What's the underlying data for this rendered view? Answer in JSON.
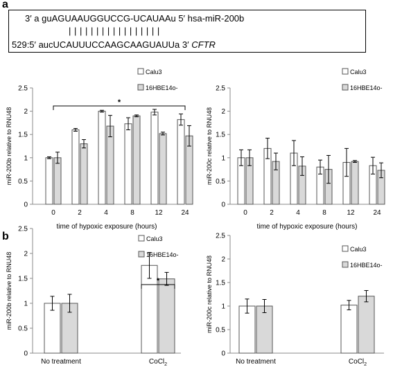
{
  "panel_labels": {
    "a": "a",
    "b": "b"
  },
  "sequence": {
    "mirna": {
      "text": "3′ a guAGUAAUGGUCCG-UCAUAAu 5′ hsa-miR-200b"
    },
    "pairing": "| | | | | | | | | | | | | | | | |",
    "target": {
      "text": "529:5′ aucUCAUUUCCAAGCAAGUAUUa 3′ ",
      "gene": "CFTR"
    }
  },
  "colors": {
    "calu3": "#ffffff",
    "hbe": "#d9d9d9",
    "stroke": "#555555"
  },
  "chart_data": [
    {
      "type": "bar",
      "xlabel": "time of hypoxic exposure (hours)",
      "ylabel": "miR-200b relative to RNU48",
      "categories": [
        "0",
        "2",
        "4",
        "8",
        "12",
        "24"
      ],
      "ylim": [
        0,
        2.5
      ],
      "yticks": [
        0,
        0.5,
        1,
        1.5,
        2,
        2.5
      ],
      "series": [
        {
          "name": "Calu3",
          "values": [
            1.0,
            1.6,
            2.0,
            1.73,
            1.98,
            1.82
          ],
          "errors": [
            0.02,
            0.03,
            0.02,
            0.13,
            0.06,
            0.12
          ]
        },
        {
          "name": "16HBE14o-",
          "values": [
            1.0,
            1.3,
            1.68,
            1.9,
            1.52,
            1.47
          ],
          "errors": [
            0.12,
            0.09,
            0.23,
            0.02,
            0.03,
            0.22
          ]
        }
      ],
      "significance": {
        "label": "*",
        "from": 0,
        "to": 5
      },
      "legend": "top-right"
    },
    {
      "type": "bar",
      "xlabel": "time of hypoxic exposure (hours)",
      "ylabel": "miR-200c relative to RNU48",
      "categories": [
        "0",
        "2",
        "4",
        "8",
        "12",
        "24"
      ],
      "ylim": [
        0,
        2.5
      ],
      "yticks": [
        0,
        0.5,
        1,
        1.5,
        2,
        2.5
      ],
      "series": [
        {
          "name": "Calu3",
          "values": [
            1.0,
            1.2,
            1.1,
            0.8,
            0.9,
            0.83
          ],
          "errors": [
            0.17,
            0.22,
            0.27,
            0.15,
            0.3,
            0.18
          ]
        },
        {
          "name": "16HBE14o-",
          "values": [
            1.0,
            0.92,
            0.82,
            0.75,
            0.92,
            0.73
          ],
          "errors": [
            0.17,
            0.18,
            0.2,
            0.3,
            0.02,
            0.16
          ]
        }
      ],
      "legend": "top-right"
    },
    {
      "type": "bar",
      "xlabel": "",
      "ylabel": "miR-200b relative to RNU48",
      "categories": [
        "No treatment",
        "CoCl2"
      ],
      "ylim": [
        0,
        2.5
      ],
      "yticks": [
        0,
        0.5,
        1,
        1.5,
        2,
        2.5
      ],
      "series": [
        {
          "name": "Calu3",
          "values": [
            1.0,
            1.76
          ],
          "errors": [
            0.14,
            0.26
          ]
        },
        {
          "name": "16HBE14o-",
          "values": [
            1.0,
            1.49
          ],
          "errors": [
            0.18,
            0.13
          ]
        }
      ],
      "significance": {
        "label": "*",
        "from": 1,
        "to": 1
      },
      "legend": "top-right"
    },
    {
      "type": "bar",
      "xlabel": "",
      "ylabel": "miR-200c relative to RNU48",
      "categories": [
        "No treatment",
        "CoCl2"
      ],
      "ylim": [
        0,
        2.5
      ],
      "yticks": [
        0,
        0.5,
        1,
        1.5,
        2,
        2.5
      ],
      "series": [
        {
          "name": "Calu3",
          "values": [
            1.0,
            1.02
          ],
          "errors": [
            0.15,
            0.1
          ]
        },
        {
          "name": "16HBE14o-",
          "values": [
            1.0,
            1.21
          ],
          "errors": [
            0.14,
            0.12
          ]
        }
      ],
      "legend": "top-right"
    }
  ]
}
